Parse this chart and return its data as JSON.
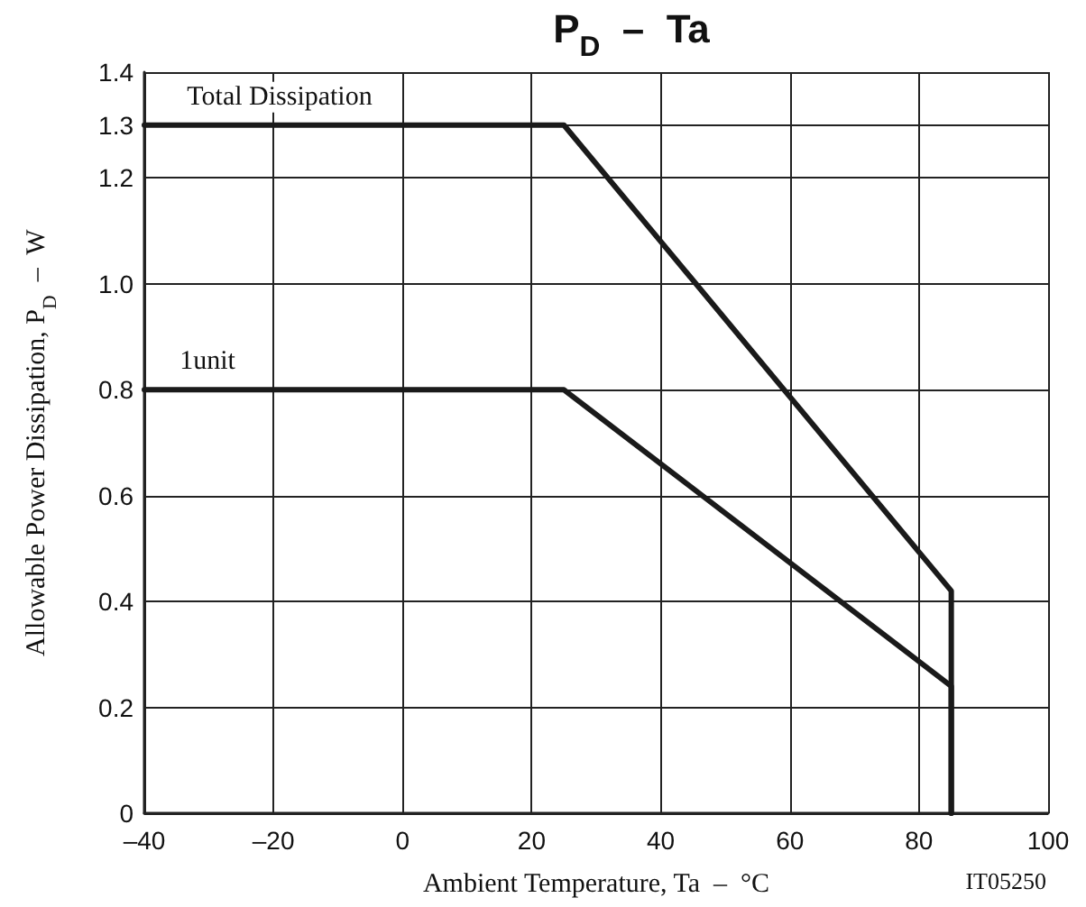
{
  "chart_data": {
    "type": "line",
    "title": "P$_{D}$  –  Ta",
    "xlabel": "Ambient Temperature, Ta  –  °C",
    "ylabel": "Allowable Power Dissipation, P$_{D}$  –  W",
    "x": [
      -40,
      25,
      85,
      85
    ],
    "series": [
      {
        "name": "Total Dissipation",
        "color": "#1a1a1a",
        "values": [
          1.3,
          1.3,
          0.42,
          0
        ]
      },
      {
        "name": "1unit",
        "color": "#1a1a1a",
        "values": [
          0.8,
          0.8,
          0.24,
          0
        ]
      }
    ],
    "xlim": [
      -40,
      100
    ],
    "xticks": [
      {
        "value": -40,
        "label": "–40"
      },
      {
        "value": -20,
        "label": "–20"
      },
      0,
      20,
      40,
      60,
      80,
      100
    ],
    "ylim": [
      0,
      1.4
    ],
    "yticks": [
      0,
      0.2,
      0.4,
      0.6,
      0.8,
      {
        "value": 1,
        "label": "1.0"
      },
      1.2,
      1.3,
      1.4
    ],
    "grid": true,
    "legend": false,
    "marker": "none",
    "line_style": "solid",
    "annotations": [
      "IT05250"
    ]
  }
}
